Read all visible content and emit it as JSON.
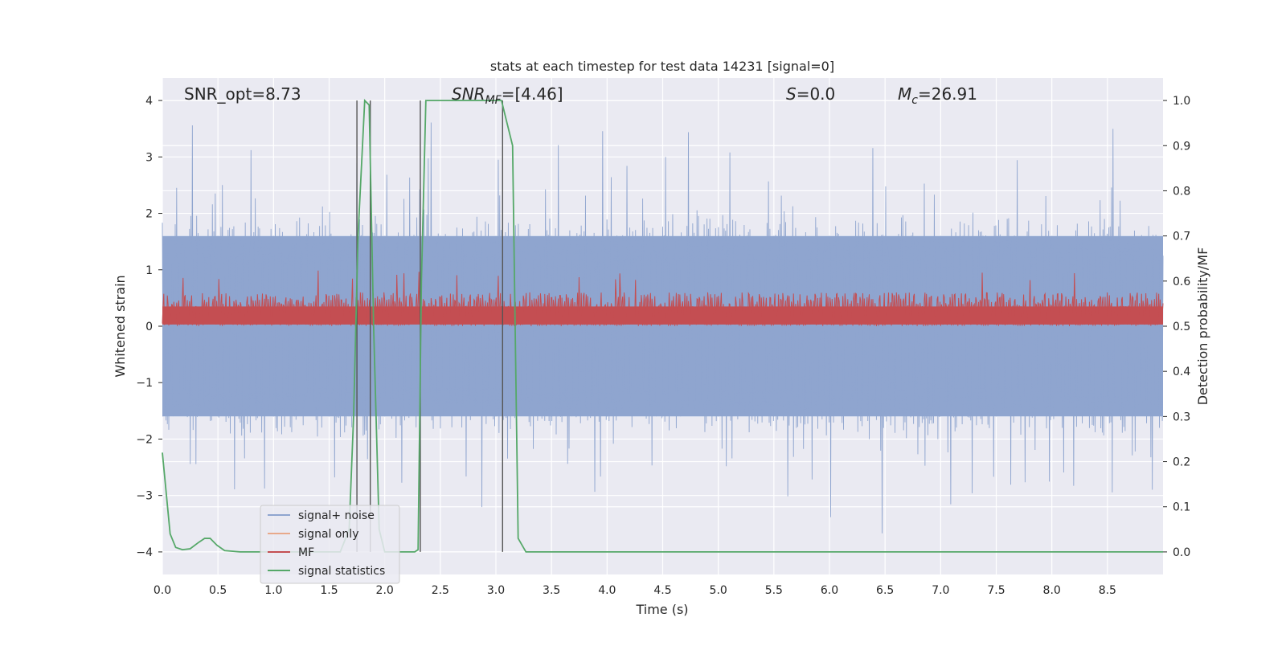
{
  "chart_data": {
    "type": "line",
    "title": "stats at each timestep for test data 14231 [signal=0]",
    "xlabel": "Time (s)",
    "ylabel": "Whitened strain",
    "ylabel_right": "Detection probability/MF",
    "xlim": [
      0.0,
      9.0
    ],
    "ylim": [
      -4.4,
      4.4
    ],
    "ylim_right": [
      -0.05,
      1.05
    ],
    "x_ticks": [
      "0.0",
      "0.5",
      "1.0",
      "1.5",
      "2.0",
      "2.5",
      "3.0",
      "3.5",
      "4.0",
      "4.5",
      "5.0",
      "5.5",
      "6.0",
      "6.5",
      "7.0",
      "7.5",
      "8.0",
      "8.5"
    ],
    "y_ticks": [
      "4",
      "3",
      "2",
      "1",
      "0",
      "−1",
      "−2",
      "−3",
      "−4"
    ],
    "y_right_ticks": [
      "1.0",
      "0.9",
      "0.8",
      "0.7",
      "0.6",
      "0.5",
      "0.4",
      "0.3",
      "0.2",
      "0.1",
      "0.0"
    ],
    "annotations": {
      "snr_opt": "SNR_opt=8.73",
      "snr_mf_main": "SNR",
      "snr_mf_sub": "MF",
      "snr_mf_rest": "=[4.46]",
      "s_main": "S",
      "s_rest": "=0.0",
      "mc_main": "M",
      "mc_sub": "c",
      "mc_rest": "=26.91"
    },
    "vertical_lines_s": [
      1.75,
      1.87,
      2.32,
      3.06
    ],
    "series": [
      {
        "name": "signal+ noise",
        "color": "#8fa5cf",
        "envelope": {
          "t_range": [
            0.0,
            9.0
          ],
          "typical_abs": 1.6,
          "peak_abs": 3.9
        }
      },
      {
        "name": "signal only",
        "color": "#e8a98a",
        "values": []
      },
      {
        "name": "MF",
        "color": "#c44e52",
        "envelope": {
          "t_range": [
            0.0,
            9.0
          ],
          "low": 0.0,
          "typical_high": 0.6,
          "peak_high": 1.0
        }
      },
      {
        "name": "signal statistics",
        "color": "#55a868",
        "axis": "right",
        "x": [
          0.0,
          0.07,
          0.12,
          0.18,
          0.25,
          0.32,
          0.38,
          0.43,
          0.49,
          0.56,
          0.7,
          1.6,
          1.68,
          1.72,
          1.76,
          1.82,
          1.86,
          1.9,
          1.95,
          2.0,
          2.15,
          2.27,
          2.3,
          2.33,
          2.37,
          2.45,
          2.6,
          2.9,
          3.05,
          3.1,
          3.15,
          3.2,
          3.27,
          9.0
        ],
        "values": [
          0.22,
          0.04,
          0.01,
          0.005,
          0.007,
          0.02,
          0.03,
          0.03,
          0.015,
          0.003,
          0.0,
          0.0,
          0.05,
          0.3,
          0.7,
          1.0,
          0.99,
          0.5,
          0.05,
          0.0,
          0.0,
          0.0,
          0.005,
          0.6,
          1.0,
          1.0,
          1.0,
          1.0,
          1.0,
          0.95,
          0.9,
          0.03,
          0.0,
          0.0
        ]
      }
    ],
    "legend": {
      "position": "lower-left",
      "entries": [
        "signal+ noise",
        "signal only",
        "MF",
        "signal statistics"
      ]
    }
  }
}
